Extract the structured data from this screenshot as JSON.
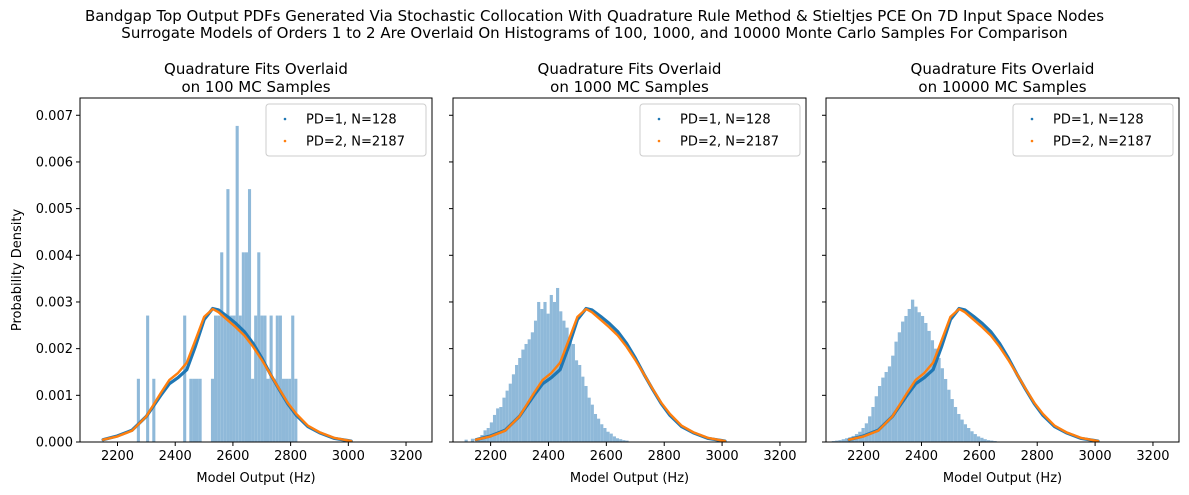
{
  "figure": {
    "title_line1": "Bandgap Top Output PDFs Generated Via Stochastic Collocation With Quadrature Rule Method & Stieltjes PCE On 7D Input Space Nodes",
    "title_line2": "Surrogate Models of Orders 1 to 2 Are Overlaid On Histograms of 100, 1000, and 10000 Monte Carlo Samples For Comparison"
  },
  "colors": {
    "histogram": "#8fb9d9",
    "pd1": "#1f77b4",
    "pd2": "#ff7f0e"
  },
  "chart_data": [
    {
      "type": "histogram+line",
      "title_line1": "Quadrature Fits Overlaid",
      "title_line2": "on 100 MC Samples",
      "xlabel": "Model Output (Hz)",
      "ylabel": "Probability Density",
      "xlim": [
        2070,
        3290
      ],
      "ylim": [
        0,
        0.00737
      ],
      "xticks": [
        2200,
        2400,
        2600,
        2800,
        3000,
        3200
      ],
      "yticks": [
        0.0,
        0.001,
        0.002,
        0.003,
        0.004,
        0.005,
        0.006,
        0.007
      ],
      "ytick_labels": [
        "0.000",
        "0.001",
        "0.002",
        "0.003",
        "0.004",
        "0.005",
        "0.006",
        "0.007"
      ],
      "grid": false,
      "legend": "top-right",
      "histogram": {
        "bin_start": 2160,
        "bin_width": 10.7,
        "counts": [
          0,
          0,
          0,
          0,
          0,
          0,
          0,
          0,
          0,
          0,
          1,
          0,
          0,
          2,
          0,
          1,
          0,
          0,
          0,
          0,
          0,
          0,
          0,
          0,
          0,
          2,
          0,
          1,
          1,
          1,
          1,
          0,
          0,
          0,
          1,
          2,
          2,
          3,
          2,
          4,
          2,
          2,
          5,
          2,
          3,
          3,
          4,
          1,
          2,
          3,
          2,
          2,
          1,
          2,
          1,
          2,
          2,
          1,
          1,
          1,
          2,
          1,
          0,
          0,
          0,
          0,
          0,
          0,
          0,
          0,
          0,
          0,
          0,
          0,
          0,
          0,
          0,
          0,
          0,
          0,
          0,
          0,
          0,
          0,
          0,
          0,
          0,
          0,
          0,
          0,
          0,
          0,
          0,
          0,
          0,
          0,
          0,
          0,
          0,
          0
        ],
        "comment_values_density": true
      },
      "series": [
        {
          "name": "PD=1, N=128",
          "x": [
            2150,
            2200,
            2250,
            2300,
            2350,
            2380,
            2410,
            2440,
            2470,
            2500,
            2530,
            2550,
            2580,
            2610,
            2640,
            2670,
            2700,
            2730,
            2760,
            2790,
            2820,
            2860,
            2900,
            2950,
            3000,
            3010
          ],
          "y": [
            5e-05,
            0.00013,
            0.00025,
            0.00055,
            0.001,
            0.00125,
            0.00138,
            0.00155,
            0.00205,
            0.00262,
            0.00286,
            0.00283,
            0.00269,
            0.00254,
            0.00236,
            0.00211,
            0.0018,
            0.00145,
            0.00113,
            0.00082,
            0.00057,
            0.00033,
            0.0002,
            8e-05,
            3e-05,
            2e-05
          ]
        },
        {
          "name": "PD=2, N=2187",
          "x": [
            2150,
            2200,
            2250,
            2300,
            2350,
            2380,
            2410,
            2440,
            2470,
            2500,
            2530,
            2550,
            2580,
            2610,
            2640,
            2670,
            2700,
            2730,
            2760,
            2790,
            2820,
            2860,
            2900,
            2950,
            3000,
            3010
          ],
          "y": [
            5e-05,
            0.00012,
            0.00024,
            0.00055,
            0.00105,
            0.00133,
            0.00148,
            0.0017,
            0.00218,
            0.00268,
            0.00285,
            0.00278,
            0.00262,
            0.00246,
            0.00228,
            0.00204,
            0.00176,
            0.00145,
            0.00114,
            0.00084,
            0.0006,
            0.00035,
            0.00021,
            9e-05,
            3e-05,
            2e-05
          ]
        }
      ]
    },
    {
      "type": "histogram+line",
      "title_line1": "Quadrature Fits Overlaid",
      "title_line2": "on 1000 MC Samples",
      "xlabel": "Model Output (Hz)",
      "ylabel": "",
      "xlim": [
        2070,
        3290
      ],
      "ylim": [
        0,
        0.00737
      ],
      "xticks": [
        2200,
        2400,
        2600,
        2800,
        3000,
        3200
      ],
      "yticks": [
        0.0,
        0.001,
        0.002,
        0.003,
        0.004,
        0.005,
        0.006,
        0.007
      ],
      "grid": false,
      "legend": "top-right",
      "histogram": {
        "bin_start": 2110,
        "bin_width": 10.9,
        "densities": [
          5e-05,
          0,
          7e-05,
          0,
          5e-05,
          0.00015,
          0.00025,
          0.0003,
          0.00042,
          0.00058,
          0.00072,
          0.00075,
          0.00095,
          0.0011,
          0.00125,
          0.00145,
          0.00165,
          0.0018,
          0.00198,
          0.0021,
          0.0022,
          0.00235,
          0.0026,
          0.003,
          0.00285,
          0.003,
          0.00275,
          0.00315,
          0.003,
          0.0033,
          0.0028,
          0.0026,
          0.00245,
          0.00225,
          0.0021,
          0.00175,
          0.00165,
          0.0014,
          0.0012,
          0.00095,
          0.0008,
          0.0006,
          0.0005,
          0.00038,
          0.0003,
          0.00022,
          0.00018,
          0.00012,
          8e-05,
          6e-05,
          4e-05,
          3e-05,
          0,
          0,
          0,
          0,
          0,
          0,
          0,
          0,
          0,
          0,
          0,
          0,
          0,
          0,
          0,
          0,
          0,
          0,
          0,
          0,
          0,
          0,
          0,
          0,
          0,
          0,
          0,
          0,
          0,
          0,
          0,
          0,
          0,
          0,
          0,
          0,
          0,
          0,
          0,
          0,
          0,
          0,
          0,
          0,
          0,
          0,
          0,
          0
        ]
      },
      "series": [
        {
          "name": "PD=1, N=128",
          "x": [
            2150,
            2200,
            2250,
            2300,
            2350,
            2380,
            2410,
            2440,
            2470,
            2500,
            2530,
            2550,
            2580,
            2610,
            2640,
            2670,
            2700,
            2730,
            2760,
            2790,
            2820,
            2860,
            2900,
            2950,
            3000,
            3010
          ],
          "y": [
            5e-05,
            0.00013,
            0.00025,
            0.00055,
            0.001,
            0.00125,
            0.00138,
            0.00155,
            0.00205,
            0.00262,
            0.00286,
            0.00283,
            0.00269,
            0.00254,
            0.00236,
            0.00211,
            0.0018,
            0.00145,
            0.00113,
            0.00082,
            0.00057,
            0.00033,
            0.0002,
            8e-05,
            3e-05,
            2e-05
          ]
        },
        {
          "name": "PD=2, N=2187",
          "x": [
            2150,
            2200,
            2250,
            2300,
            2350,
            2380,
            2410,
            2440,
            2470,
            2500,
            2530,
            2550,
            2580,
            2610,
            2640,
            2670,
            2700,
            2730,
            2760,
            2790,
            2820,
            2860,
            2900,
            2950,
            3000,
            3010
          ],
          "y": [
            5e-05,
            0.00012,
            0.00024,
            0.00055,
            0.00105,
            0.00133,
            0.00148,
            0.0017,
            0.00218,
            0.00268,
            0.00285,
            0.00278,
            0.00262,
            0.00246,
            0.00228,
            0.00204,
            0.00176,
            0.00145,
            0.00114,
            0.00084,
            0.0006,
            0.00035,
            0.00021,
            9e-05,
            3e-05,
            2e-05
          ]
        }
      ]
    },
    {
      "type": "histogram+line",
      "title_line1": "Quadrature Fits Overlaid",
      "title_line2": "on 10000 MC Samples",
      "xlabel": "Model Output (Hz)",
      "ylabel": "",
      "xlim": [
        2070,
        3290
      ],
      "ylim": [
        0,
        0.00737
      ],
      "xticks": [
        2200,
        2400,
        2600,
        2800,
        3000,
        3200
      ],
      "yticks": [
        0.0,
        0.001,
        0.002,
        0.003,
        0.004,
        0.005,
        0.006,
        0.007
      ],
      "grid": false,
      "legend": "top-right",
      "histogram": {
        "bin_start": 2090,
        "bin_width": 11.4,
        "densities": [
          2e-05,
          3e-05,
          4e-05,
          6e-05,
          8e-05,
          0.0001,
          0.00013,
          0.00017,
          0.00022,
          0.0003,
          0.0004,
          0.00055,
          0.00075,
          0.00098,
          0.0012,
          0.00138,
          0.0015,
          0.00162,
          0.00185,
          0.00215,
          0.00235,
          0.00258,
          0.0027,
          0.00285,
          0.00305,
          0.0029,
          0.00278,
          0.0027,
          0.00255,
          0.00238,
          0.00218,
          0.002,
          0.0018,
          0.00158,
          0.00135,
          0.00112,
          0.00092,
          0.00075,
          0.0006,
          0.00048,
          0.00038,
          0.0003,
          0.00023,
          0.00017,
          0.00012,
          9e-05,
          6e-05,
          4e-05,
          3e-05,
          2e-05,
          1e-05,
          0,
          0,
          0,
          0,
          0,
          0,
          0,
          0,
          0,
          0,
          0,
          0,
          0,
          0,
          0,
          0,
          0,
          0,
          0,
          0,
          0,
          0,
          0,
          0,
          0,
          0,
          0,
          0,
          0,
          0,
          0,
          0,
          0,
          0,
          0,
          0,
          0,
          0,
          0,
          0,
          0,
          0,
          0,
          0,
          0,
          0,
          0,
          0,
          0
        ]
      },
      "series": [
        {
          "name": "PD=1, N=128",
          "x": [
            2150,
            2200,
            2250,
            2300,
            2350,
            2380,
            2410,
            2440,
            2470,
            2500,
            2530,
            2550,
            2580,
            2610,
            2640,
            2670,
            2700,
            2730,
            2760,
            2790,
            2820,
            2860,
            2900,
            2950,
            3000,
            3010
          ],
          "y": [
            5e-05,
            0.00013,
            0.00025,
            0.00055,
            0.001,
            0.00125,
            0.00138,
            0.00155,
            0.00205,
            0.00262,
            0.00286,
            0.00283,
            0.00269,
            0.00254,
            0.00236,
            0.00211,
            0.0018,
            0.00145,
            0.00113,
            0.00082,
            0.00057,
            0.00033,
            0.0002,
            8e-05,
            3e-05,
            2e-05
          ]
        },
        {
          "name": "PD=2, N=2187",
          "x": [
            2150,
            2200,
            2250,
            2300,
            2350,
            2380,
            2410,
            2440,
            2470,
            2500,
            2530,
            2550,
            2580,
            2610,
            2640,
            2670,
            2700,
            2730,
            2760,
            2790,
            2820,
            2860,
            2900,
            2950,
            3000,
            3010
          ],
          "y": [
            5e-05,
            0.00012,
            0.00024,
            0.00055,
            0.00105,
            0.00133,
            0.00148,
            0.0017,
            0.00218,
            0.00268,
            0.00285,
            0.00278,
            0.00262,
            0.00246,
            0.00228,
            0.00204,
            0.00176,
            0.00145,
            0.00114,
            0.00084,
            0.0006,
            0.00035,
            0.00021,
            9e-05,
            3e-05,
            2e-05
          ]
        }
      ]
    }
  ]
}
